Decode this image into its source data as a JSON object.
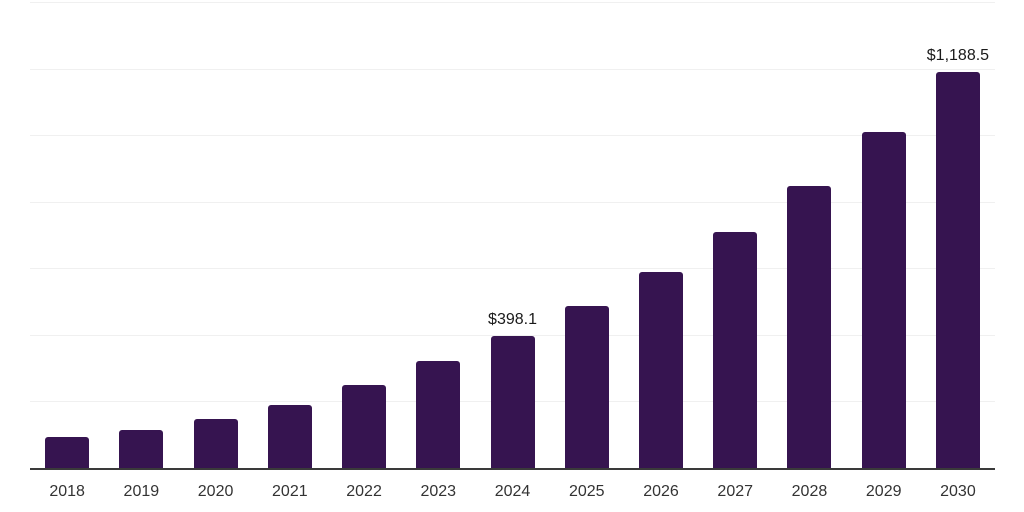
{
  "chart_data": {
    "type": "bar",
    "title": "",
    "xlabel": "",
    "ylabel": "",
    "categories": [
      "2018",
      "2019",
      "2020",
      "2021",
      "2022",
      "2023",
      "2024",
      "2025",
      "2026",
      "2027",
      "2028",
      "2029",
      "2030"
    ],
    "values": [
      92.0,
      114.7,
      147.6,
      189.5,
      250.8,
      322.4,
      398.1,
      488.0,
      589.8,
      709.6,
      848.2,
      1008.9,
      1188.5
    ],
    "data_labels": [
      "",
      "",
      "",
      "",
      "",
      "",
      "$398.1",
      "",
      "",
      "",
      "",
      "",
      "$1,188.5"
    ],
    "ylim": [
      0,
      1400
    ],
    "gridline_step": 200,
    "y_tick_labels_visible": false,
    "grid": "horizontal",
    "legend": "none",
    "colors": {
      "bar": "#361450",
      "gridline": "#f0f0f0",
      "axis_line": "#3a3a3a",
      "tick_label": "#333333",
      "data_label": "#1a1a1a",
      "background": "#ffffff"
    }
  }
}
